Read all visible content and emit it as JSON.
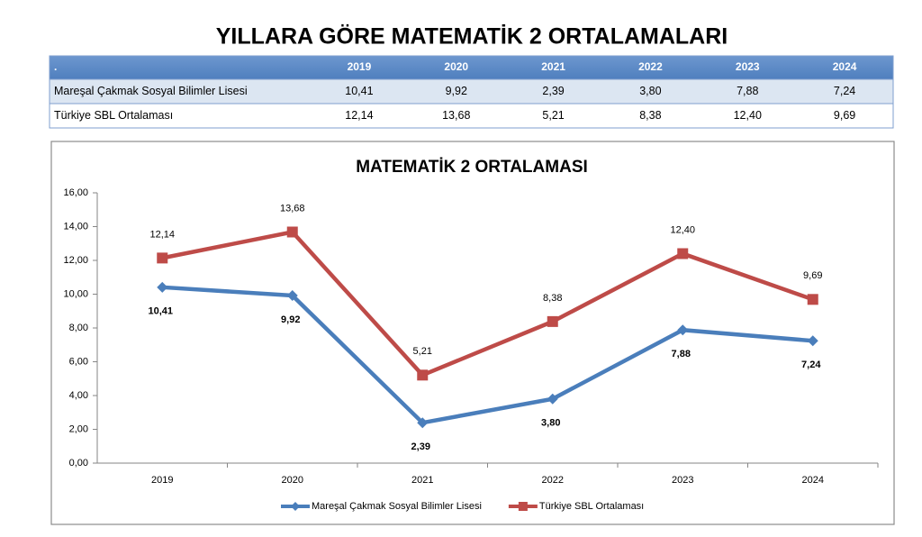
{
  "header": {
    "title": "YILLARA GÖRE MATEMATİK 2  ORTALAMALARI"
  },
  "table": {
    "header": [
      ".",
      "2019",
      "2020",
      "2021",
      "2022",
      "2023",
      "2024"
    ],
    "rows": [
      [
        "Mareşal Çakmak Sosyal Bilimler Lisesi",
        "10,41",
        "9,92",
        "2,39",
        "3,80",
        "7,88",
        "7,24"
      ],
      [
        "Türkiye SBL Ortalaması",
        "12,14",
        "13,68",
        "5,21",
        "8,38",
        "12,40",
        "9,69"
      ]
    ]
  },
  "chart_data": {
    "type": "line",
    "title": "MATEMATİK 2 ORTALAMASI",
    "categories": [
      "2019",
      "2020",
      "2021",
      "2022",
      "2023",
      "2024"
    ],
    "series": [
      {
        "name": "Mareşal Çakmak Sosyal Bilimler Lisesi",
        "color": "#4a7ebb",
        "marker": "diamond",
        "values": [
          10.41,
          9.92,
          2.39,
          3.8,
          7.88,
          7.24
        ],
        "value_labels": [
          "10,41",
          "9,92",
          "2,39",
          "3,80",
          "7,88",
          "7,24"
        ]
      },
      {
        "name": "Türkiye SBL Ortalaması",
        "color": "#be4b48",
        "marker": "square",
        "values": [
          12.14,
          13.68,
          5.21,
          8.38,
          12.4,
          9.69
        ],
        "value_labels": [
          "12,14",
          "13,68",
          "5,21",
          "8,38",
          "12,40",
          "9,69"
        ]
      }
    ],
    "ylim": [
      0,
      16
    ],
    "yticks": [
      {
        "value": 0,
        "label": "0,00"
      },
      {
        "value": 2,
        "label": "2,00"
      },
      {
        "value": 4,
        "label": "4,00"
      },
      {
        "value": 6,
        "label": "6,00"
      },
      {
        "value": 8,
        "label": "8,00"
      },
      {
        "value": 10,
        "label": "10,00"
      },
      {
        "value": 12,
        "label": "12,00"
      },
      {
        "value": 14,
        "label": "14,00"
      },
      {
        "value": 16,
        "label": "16,00"
      }
    ],
    "grid": false,
    "legend": "bottom"
  }
}
